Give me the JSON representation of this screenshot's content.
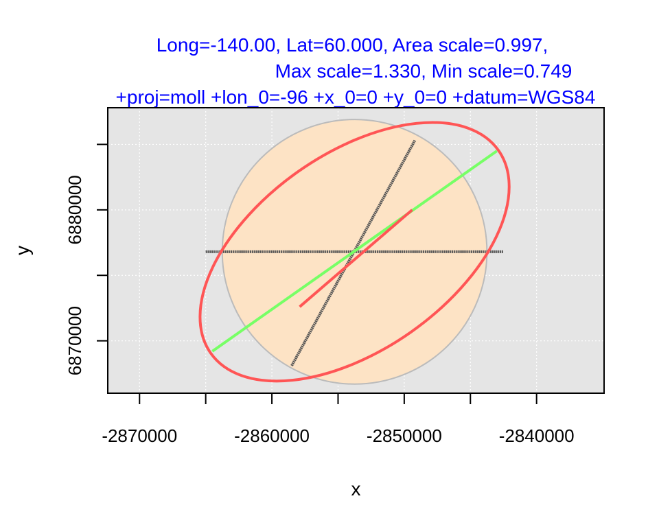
{
  "chart_data": {
    "type": "scatter",
    "title_lines": [
      "Long=-140.00, Lat=60.000, Area scale=0.997,",
      "Max scale=1.330, Min scale=0.749",
      "+proj=moll +lon_0=-96 +x_0=0 +y_0=0 +datum=WGS84"
    ],
    "xlabel": "x",
    "ylabel": "y",
    "xlim": [
      -2872400,
      -2834900
    ],
    "ylim": [
      6866000,
      6887800
    ],
    "x_ticks": [
      -2870000,
      -2865000,
      -2860000,
      -2855000,
      -2850000,
      -2845000,
      -2840000
    ],
    "x_tick_labels": [
      "-2870000",
      "-2860000",
      "-2850000",
      "-2840000"
    ],
    "x_tick_label_values": [
      -2870000,
      -2860000,
      -2850000,
      -2840000
    ],
    "y_ticks": [
      6870000,
      6875000,
      6880000,
      6885000
    ],
    "y_tick_labels": [
      "6870000",
      "6880000"
    ],
    "y_tick_label_values": [
      6870000,
      6880000
    ],
    "grid": true,
    "panel_background": "#e5e5e5",
    "center": [
      -2853750,
      6876800
    ],
    "unit_circle": {
      "radius": 10000,
      "fill": "#fde3c5",
      "stroke": "#bbbbbb"
    },
    "tissot_ellipse": {
      "semi_major": 13300,
      "semi_minor": 7490,
      "angle_deg": 35.2,
      "stroke": "#ff5555"
    },
    "max_scale_line": {
      "from": [
        -2864500,
        6869200
      ],
      "to": [
        -2843000,
        6884500
      ],
      "stroke": "#77ff66"
    },
    "min_scale_line": {
      "from": [
        -2857900,
        6872600
      ],
      "to": [
        -2849400,
        6880000
      ],
      "stroke": "#ff5555"
    },
    "meridian_line": {
      "from": [
        -2858500,
        6868100
      ],
      "to": [
        -2849200,
        6885300
      ],
      "stroke": "#555555"
    },
    "parallel_line": {
      "from": [
        -2865000,
        6876800
      ],
      "to": [
        -2842500,
        6876800
      ],
      "stroke": "#555555"
    }
  }
}
